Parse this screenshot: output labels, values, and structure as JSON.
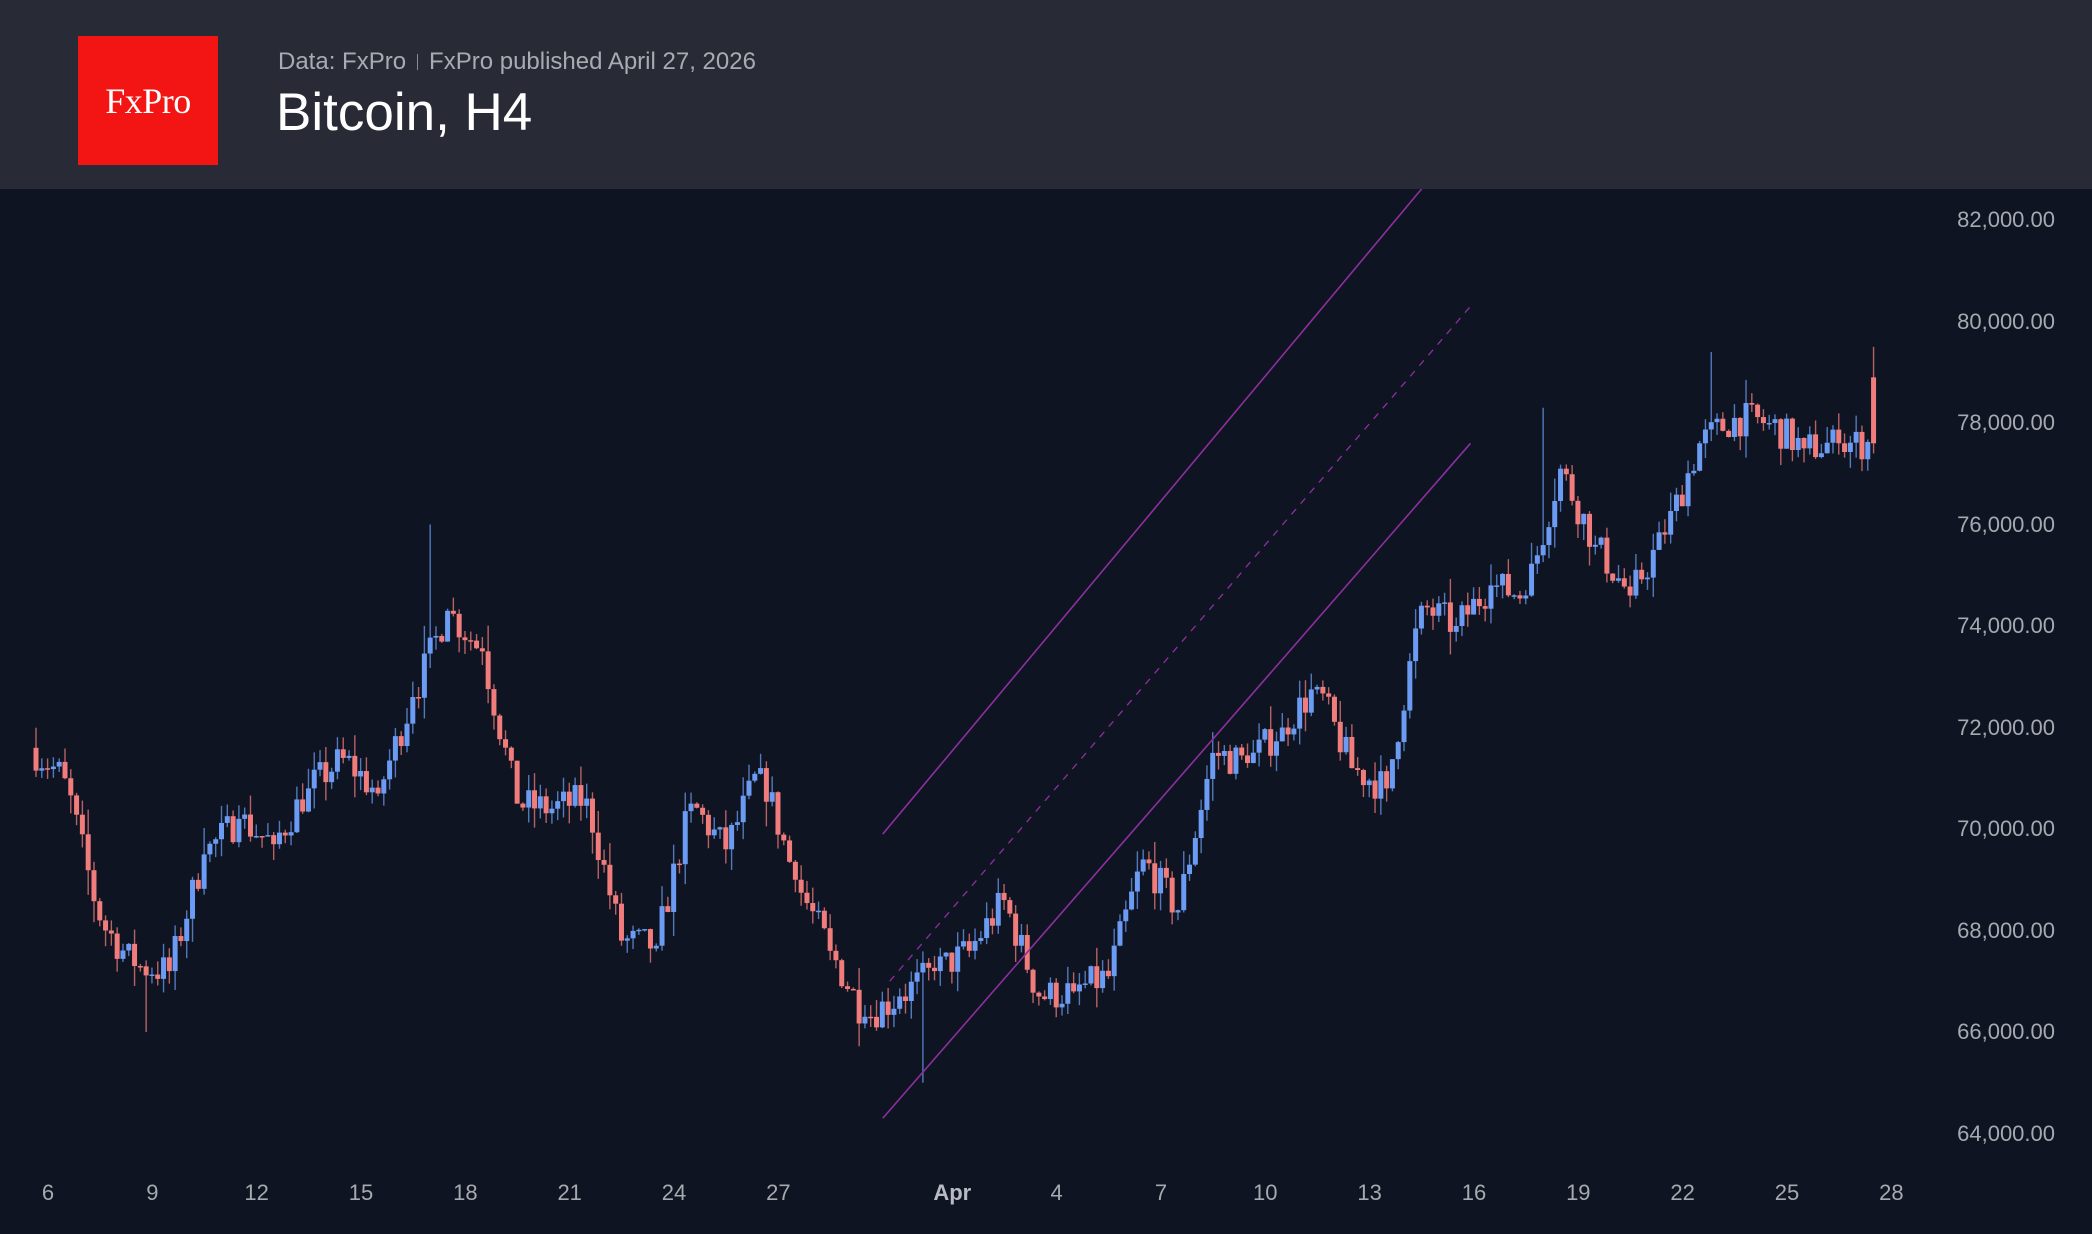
{
  "header": {
    "logo_text": "FxPro",
    "source": "Data: FxPro",
    "published": "FxPro published April 27, 2026",
    "title": "Bitcoin, H4"
  },
  "colors": {
    "background": "#0e1421",
    "header_bg": "#282a35",
    "logo_red": "#f31414",
    "bull": "#6b9bf2",
    "bear": "#f07c7c",
    "channel": "#8e2fa0",
    "axis_text": "#a7a9b0"
  },
  "chart_data": {
    "type": "candlestick",
    "title": "Bitcoin, H4",
    "xlabel": "",
    "ylabel": "",
    "ylim": [
      63500,
      82500
    ],
    "y_ticks": [
      "82,000.00",
      "80,000.00",
      "78,000.00",
      "76,000.00",
      "74,000.00",
      "72,000.00",
      "70,000.00",
      "68,000.00",
      "66,000.00",
      "64,000.00"
    ],
    "y_tick_values": [
      82000,
      80000,
      78000,
      76000,
      74000,
      72000,
      70000,
      68000,
      66000,
      64000
    ],
    "x_ticks": [
      {
        "label": "6",
        "day": 0
      },
      {
        "label": "9",
        "day": 3
      },
      {
        "label": "12",
        "day": 6
      },
      {
        "label": "15",
        "day": 9
      },
      {
        "label": "18",
        "day": 12
      },
      {
        "label": "21",
        "day": 15
      },
      {
        "label": "24",
        "day": 18
      },
      {
        "label": "27",
        "day": 21
      },
      {
        "label": "Apr",
        "day": 26,
        "bold": true
      },
      {
        "label": "4",
        "day": 29
      },
      {
        "label": "7",
        "day": 32
      },
      {
        "label": "10",
        "day": 35
      },
      {
        "label": "13",
        "day": 38
      },
      {
        "label": "16",
        "day": 41
      },
      {
        "label": "19",
        "day": 44
      },
      {
        "label": "22",
        "day": 47
      },
      {
        "label": "25",
        "day": 50
      },
      {
        "label": "28",
        "day": 53
      }
    ],
    "timeframe": "H4",
    "period": "Mar 6 – Apr 27, 2026",
    "daily_closes_approx": [
      {
        "date": "Mar 6",
        "close": 71000
      },
      {
        "date": "Mar 7",
        "close": 68200
      },
      {
        "date": "Mar 8",
        "close": 67300
      },
      {
        "date": "Mar 9",
        "close": 67200
      },
      {
        "date": "Mar 10",
        "close": 69500
      },
      {
        "date": "Mar 11",
        "close": 70200
      },
      {
        "date": "Mar 12",
        "close": 69700
      },
      {
        "date": "Mar 13",
        "close": 70800
      },
      {
        "date": "Mar 14",
        "close": 71400
      },
      {
        "date": "Mar 15",
        "close": 70700
      },
      {
        "date": "Mar 16",
        "close": 72600
      },
      {
        "date": "Mar 17",
        "close": 74300
      },
      {
        "date": "Mar 18",
        "close": 73500
      },
      {
        "date": "Mar 19",
        "close": 70500
      },
      {
        "date": "Mar 20",
        "close": 70400
      },
      {
        "date": "Mar 21",
        "close": 70600
      },
      {
        "date": "Mar 22",
        "close": 67800
      },
      {
        "date": "Mar 23",
        "close": 67700
      },
      {
        "date": "Mar 24",
        "close": 70500
      },
      {
        "date": "Mar 25",
        "close": 69600
      },
      {
        "date": "Mar 26",
        "close": 71200
      },
      {
        "date": "Mar 27",
        "close": 69000
      },
      {
        "date": "Mar 28",
        "close": 67600
      },
      {
        "date": "Mar 29",
        "close": 66300
      },
      {
        "date": "Mar 30",
        "close": 66700
      },
      {
        "date": "Mar 31",
        "close": 67200
      },
      {
        "date": "Apr 1",
        "close": 67600
      },
      {
        "date": "Apr 2",
        "close": 68600
      },
      {
        "date": "Apr 3",
        "close": 66700
      },
      {
        "date": "Apr 4",
        "close": 66800
      },
      {
        "date": "Apr 5",
        "close": 67100
      },
      {
        "date": "Apr 6",
        "close": 69400
      },
      {
        "date": "Apr 7",
        "close": 68400
      },
      {
        "date": "Apr 8",
        "close": 71500
      },
      {
        "date": "Apr 9",
        "close": 71300
      },
      {
        "date": "Apr 10",
        "close": 72000
      },
      {
        "date": "Apr 11",
        "close": 72800
      },
      {
        "date": "Apr 12",
        "close": 71200
      },
      {
        "date": "Apr 13",
        "close": 70800
      },
      {
        "date": "Apr 14",
        "close": 74400
      },
      {
        "date": "Apr 15",
        "close": 74000
      },
      {
        "date": "Apr 16",
        "close": 74800
      },
      {
        "date": "Apr 17",
        "close": 74600
      },
      {
        "date": "Apr 18",
        "close": 77100
      },
      {
        "date": "Apr 19",
        "close": 75600
      },
      {
        "date": "Apr 20",
        "close": 74600
      },
      {
        "date": "Apr 21",
        "close": 75800
      },
      {
        "date": "Apr 22",
        "close": 77600
      },
      {
        "date": "Apr 23",
        "close": 78100
      },
      {
        "date": "Apr 24",
        "close": 78000
      },
      {
        "date": "Apr 25",
        "close": 77500
      },
      {
        "date": "Apr 26",
        "close": 77600
      },
      {
        "date": "Apr 27",
        "close": 77600
      }
    ],
    "key_points": {
      "start_open": 71600,
      "mar9_low": 66000,
      "mar17_high": 76000,
      "mar31_low": 65000,
      "apr18_high": 78300,
      "apr23_high": 79400,
      "last_high": 79500,
      "last_close": 77600
    },
    "annotations": [
      {
        "type": "channel",
        "name": "ascending-channel-upper",
        "from": {
          "day": 24.0,
          "price": 69900
        },
        "to": {
          "day": 39.6,
          "price": 82700
        },
        "style": "solid"
      },
      {
        "type": "channel",
        "name": "ascending-channel-mid",
        "from": {
          "day": 24.2,
          "price": 67000
        },
        "to": {
          "day": 40.9,
          "price": 80300
        },
        "style": "dashed"
      },
      {
        "type": "channel",
        "name": "ascending-channel-lower",
        "from": {
          "day": 24.0,
          "price": 64300
        },
        "to": {
          "day": 40.9,
          "price": 77600
        },
        "style": "solid"
      }
    ],
    "legend": []
  }
}
